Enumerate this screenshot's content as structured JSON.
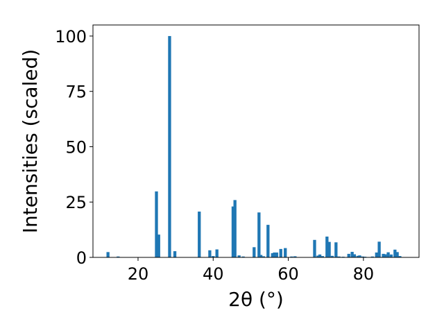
{
  "chart_data": {
    "type": "bar",
    "title": "",
    "xlabel": "2θ (°)",
    "ylabel": "Intensities (scaled)",
    "xlim": [
      8.0,
      94.8
    ],
    "ylim": [
      0,
      105
    ],
    "xticks": [
      20,
      40,
      60,
      80
    ],
    "yticks": [
      0,
      25,
      50,
      75,
      100
    ],
    "grid": false,
    "bar_color": "#1f77b4",
    "bar_width": 0.8,
    "x": [
      12.0,
      14.7,
      24.9,
      25.5,
      28.4,
      29.8,
      36.3,
      39.1,
      40.0,
      41.0,
      45.3,
      45.8,
      46.9,
      48.0,
      50.9,
      52.2,
      52.7,
      53.4,
      54.6,
      55.8,
      56.3,
      56.9,
      58.0,
      59.2,
      60.9,
      61.8,
      67.0,
      67.9,
      68.4,
      69.1,
      70.3,
      70.9,
      71.7,
      72.7,
      73.5,
      74.6,
      76.1,
      77.0,
      77.6,
      78.5,
      79.0,
      79.8,
      80.4,
      82.4,
      83.5,
      84.2,
      85.3,
      85.8,
      86.6,
      87.4,
      88.4,
      89.0,
      89.7
    ],
    "values": [
      2.4,
      0.4,
      29.8,
      10.3,
      100.0,
      2.8,
      20.7,
      3.2,
      0.6,
      3.6,
      23.0,
      25.9,
      0.9,
      0.4,
      4.6,
      20.3,
      1.1,
      0.5,
      14.7,
      1.9,
      2.2,
      2.2,
      3.8,
      4.2,
      0.4,
      0.5,
      7.9,
      0.8,
      1.3,
      0.6,
      9.4,
      7.0,
      0.7,
      6.8,
      0.4,
      0.3,
      1.6,
      2.5,
      1.4,
      0.7,
      0.9,
      0.4,
      0.3,
      0.4,
      2.2,
      7.1,
      1.6,
      1.4,
      2.3,
      1.3,
      3.5,
      2.4,
      0.6
    ]
  }
}
